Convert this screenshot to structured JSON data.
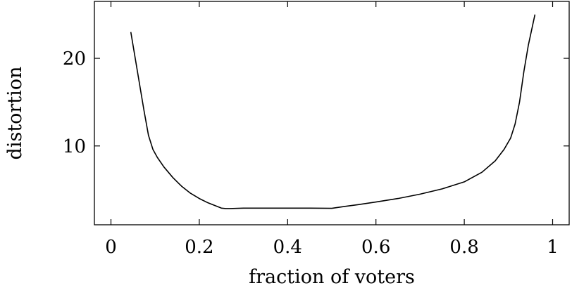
{
  "chart_data": {
    "type": "line",
    "title": "",
    "xlabel": "fraction of voters",
    "ylabel": "distortion",
    "xlim": [
      -0.0375,
      1.0375
    ],
    "ylim": [
      1,
      26.5
    ],
    "x_ticks": [
      0,
      0.2,
      0.4,
      0.6,
      0.8,
      1
    ],
    "x_tick_labels": [
      "0",
      "0.2",
      "0.4",
      "0.6",
      "0.8",
      "1"
    ],
    "y_ticks": [
      10,
      20
    ],
    "y_tick_labels": [
      "10",
      "20"
    ],
    "grid": false,
    "legend": "none",
    "line_color": "#000000",
    "series": [
      {
        "x": [
          0.045,
          0.06,
          0.075,
          0.085,
          0.095,
          0.105,
          0.12,
          0.14,
          0.16,
          0.18,
          0.2,
          0.22,
          0.24,
          0.25,
          0.26,
          0.27,
          0.3,
          0.35,
          0.4,
          0.45,
          0.5,
          0.53,
          0.56,
          0.6,
          0.65,
          0.7,
          0.75,
          0.8,
          0.84,
          0.87,
          0.89,
          0.905,
          0.915,
          0.925,
          0.935,
          0.945,
          0.96
        ],
        "y": [
          23.0,
          18.5,
          14.0,
          11.2,
          9.6,
          8.7,
          7.6,
          6.4,
          5.4,
          4.6,
          4.0,
          3.5,
          3.1,
          2.9,
          2.85,
          2.85,
          2.9,
          2.9,
          2.9,
          2.9,
          2.88,
          3.1,
          3.3,
          3.6,
          4.0,
          4.5,
          5.1,
          5.9,
          7.0,
          8.3,
          9.6,
          10.9,
          12.5,
          15.0,
          18.5,
          21.5,
          25.0
        ]
      }
    ]
  }
}
